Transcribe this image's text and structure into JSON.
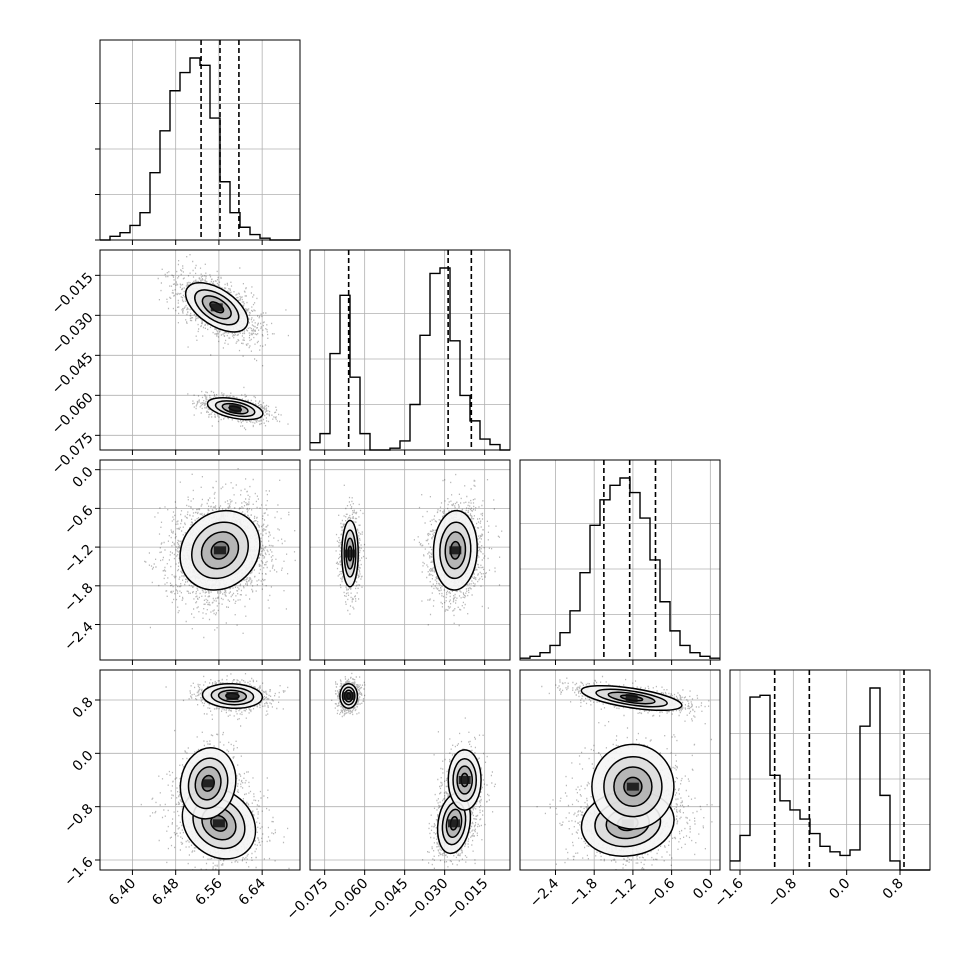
{
  "chart_data": {
    "type": "corner",
    "colors": {
      "line": "#000000",
      "grid": "#b0b0b0",
      "scatter": "#000000"
    },
    "grid": true,
    "parameters": [
      {
        "index": 0,
        "range": [
          6.34,
          6.71
        ],
        "ticks": [
          6.4,
          6.48,
          6.56,
          6.64
        ],
        "tick_labels": [
          "6.40",
          "6.48",
          "6.56",
          "6.64"
        ],
        "quantiles": [
          6.527,
          6.562,
          6.597
        ],
        "hist_edges_start": 6.34,
        "hist_bin_width": 0.0185,
        "hist_counts": [
          0,
          2,
          4,
          8,
          15,
          37,
          60,
          82,
          92,
          100,
          96,
          67,
          32,
          15,
          7,
          3,
          1,
          0,
          0,
          0
        ]
      },
      {
        "index": 1,
        "range": [
          -0.0805,
          -0.0055
        ],
        "ticks": [
          -0.075,
          -0.06,
          -0.045,
          -0.03,
          -0.015
        ],
        "tick_labels": [
          "−0.075",
          "−0.060",
          "−0.045",
          "−0.030",
          "−0.015"
        ],
        "quantiles": [
          -0.066,
          -0.0287,
          -0.02
        ],
        "hist_edges_start": -0.0805,
        "hist_bin_width": 0.00375,
        "hist_counts": [
          4,
          9,
          53,
          85,
          40,
          9,
          0,
          0,
          1,
          5,
          25,
          63,
          97,
          100,
          60,
          30,
          16,
          6,
          3,
          0
        ]
      },
      {
        "index": 2,
        "range": [
          -2.95,
          0.15
        ],
        "ticks": [
          -2.4,
          -1.8,
          -1.2,
          -0.6,
          0.0
        ],
        "tick_labels": [
          "−2.4",
          "−1.8",
          "−1.2",
          "−0.6",
          "0.0"
        ],
        "quantiles": [
          -1.65,
          -1.25,
          -0.85
        ],
        "hist_edges_start": -2.95,
        "hist_bin_width": 0.155,
        "hist_counts": [
          1,
          2,
          4,
          8,
          15,
          27,
          48,
          74,
          88,
          96,
          100,
          92,
          78,
          55,
          32,
          16,
          8,
          4,
          2,
          1
        ]
      },
      {
        "index": 3,
        "range": [
          -1.75,
          1.25
        ],
        "ticks": [
          -1.6,
          -0.8,
          0.0,
          0.8
        ],
        "tick_labels": [
          "−1.6",
          "−0.8",
          "0.0",
          "0.8"
        ],
        "quantiles": [
          -1.08,
          -0.56,
          0.86
        ],
        "hist_edges_start": -1.75,
        "hist_bin_width": 0.15,
        "hist_counts": [
          5,
          19,
          95,
          96,
          52,
          38,
          33,
          28,
          20,
          13,
          10,
          8,
          11,
          79,
          100,
          41,
          5,
          0,
          0,
          0
        ]
      }
    ],
    "pairs": [
      {
        "x": 0,
        "y": 1,
        "modes": [
          {
            "cx": 6.556,
            "cy": -0.027,
            "sx": 0.028,
            "sy": 0.0045,
            "r": -0.55,
            "w": 0.67
          },
          {
            "cx": 6.59,
            "cy": -0.065,
            "sx": 0.025,
            "sy": 0.002,
            "r": -0.45,
            "w": 0.33
          }
        ]
      },
      {
        "x": 0,
        "y": 2,
        "modes": [
          {
            "cx": 6.562,
            "cy": -1.25,
            "sx": 0.036,
            "sy": 0.3,
            "r": 0.15,
            "w": 1.0
          }
        ]
      },
      {
        "x": 1,
        "y": 2,
        "modes": [
          {
            "cx": -0.0655,
            "cy": -1.3,
            "sx": 0.0015,
            "sy": 0.25,
            "r": 0.0,
            "w": 0.33
          },
          {
            "cx": -0.026,
            "cy": -1.25,
            "sx": 0.004,
            "sy": 0.3,
            "r": 0.05,
            "w": 0.67
          }
        ]
      },
      {
        "x": 0,
        "y": 3,
        "modes": [
          {
            "cx": 6.585,
            "cy": 0.86,
            "sx": 0.027,
            "sy": 0.09,
            "r": -0.1,
            "w": 0.35
          },
          {
            "cx": 6.56,
            "cy": -1.05,
            "sx": 0.033,
            "sy": 0.26,
            "r": -0.2,
            "w": 0.45
          },
          {
            "cx": 6.54,
            "cy": -0.45,
            "sx": 0.025,
            "sy": 0.26,
            "r": 0.1,
            "w": 0.2
          }
        ]
      },
      {
        "x": 1,
        "y": 3,
        "modes": [
          {
            "cx": -0.066,
            "cy": 0.86,
            "sx": 0.0016,
            "sy": 0.09,
            "r": 0.0,
            "w": 0.35
          },
          {
            "cx": -0.0265,
            "cy": -1.05,
            "sx": 0.003,
            "sy": 0.22,
            "r": 0.2,
            "w": 0.45
          },
          {
            "cx": -0.0225,
            "cy": -0.4,
            "sx": 0.003,
            "sy": 0.22,
            "r": 0.0,
            "w": 0.2
          }
        ]
      },
      {
        "x": 2,
        "y": 3,
        "modes": [
          {
            "cx": -1.22,
            "cy": 0.83,
            "sx": 0.38,
            "sy": 0.09,
            "r": -0.6,
            "w": 0.35
          },
          {
            "cx": -1.28,
            "cy": -1.05,
            "sx": 0.35,
            "sy": 0.24,
            "r": 0.1,
            "w": 0.45
          },
          {
            "cx": -1.2,
            "cy": -0.5,
            "sx": 0.32,
            "sy": 0.3,
            "r": 0.0,
            "w": 0.2
          }
        ]
      }
    ]
  }
}
